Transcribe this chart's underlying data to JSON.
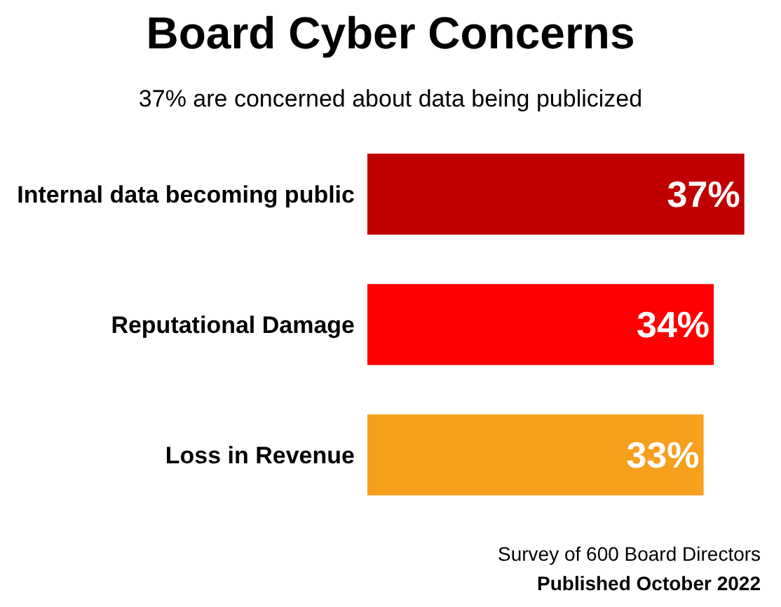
{
  "chart_data": {
    "type": "bar",
    "orientation": "horizontal",
    "title": "Board Cyber Concerns",
    "subtitle": "37% are concerned about data being publicized",
    "categories": [
      "Internal data becoming public",
      "Reputational Damage",
      "Loss in Revenue"
    ],
    "values": [
      37,
      34,
      33
    ],
    "value_labels": [
      "37%",
      "34%",
      "33%"
    ],
    "colors": [
      "#c00000",
      "#ff0000",
      "#f7a01d"
    ],
    "annotations": [
      "Survey of 600 Board Directors",
      "Published October 2022"
    ]
  }
}
